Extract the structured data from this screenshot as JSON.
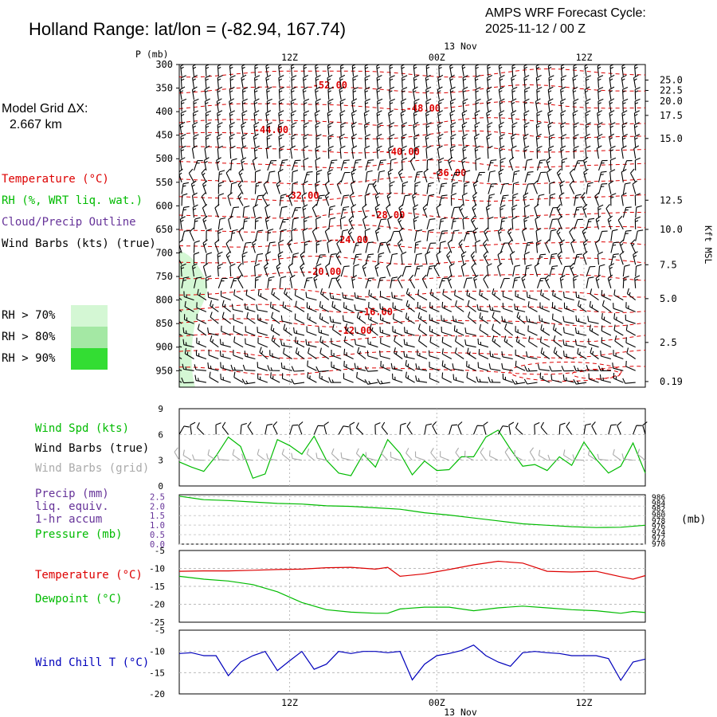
{
  "header": {
    "title": "Holland Range:  lat/lon = (-82.94, 167.74)",
    "cycle_line1": "AMPS WRF Forecast Cycle:",
    "cycle_line2": "2025-11-12 / 00  Z"
  },
  "model": {
    "label": "Model Grid ΔX:",
    "value": "2.667 km"
  },
  "legend_top": {
    "temperature": "Temperature (°C)",
    "rh": "RH (%, WRT liq. wat.)",
    "cloud": "Cloud/Precip Outline",
    "wind": "Wind Barbs (kts) (true)"
  },
  "rh_legend": [
    {
      "label": "RH > 70%",
      "color": "#d4f7d4"
    },
    {
      "label": "RH > 80%",
      "color": "#a4e8a4"
    },
    {
      "label": "RH > 90%",
      "color": "#33dd33"
    }
  ],
  "time_axis": {
    "top_date": "13 Nov",
    "bottom_date": "13 Nov",
    "ticks": [
      {
        "label": "12Z",
        "hour": 12
      },
      {
        "label": "00Z",
        "hour": 24
      },
      {
        "label": "12Z",
        "hour": 36
      }
    ],
    "start_hour": 3,
    "end_hour": 41
  },
  "panel_labels": {
    "wind_spd": "Wind Spd (kts)",
    "wind_true": "Wind Barbs (true)",
    "wind_grid": "Wind Barbs (grid)",
    "precip1": "Precip (mm)",
    "precip2": "liq. equiv.",
    "precip3": "1-hr accum",
    "pressure": "Pressure (mb)",
    "pressure_unit": "(mb)",
    "temperature": "Temperature (°C)",
    "dewpoint": "Dewpoint (°C)",
    "windchill": "Wind Chill T (°C)"
  },
  "colors": {
    "temperature": "#dd0000",
    "green": "#00bb00",
    "purple": "#663399",
    "blue": "#0000bb",
    "grid_barb": "#aaaaaa"
  },
  "chart_data": [
    {
      "type": "cross-section",
      "name": "upper",
      "yaxis_title": "P (mb)",
      "right_axis_title": "Kft MSL",
      "p_ticks": [
        "300",
        "350",
        "400",
        "450",
        "500",
        "550",
        "600",
        "650",
        "700",
        "750",
        "800",
        "850",
        "900",
        "950"
      ],
      "kft_ticks": [
        {
          "label": "25.0",
          "p": 333
        },
        {
          "label": "22.5",
          "p": 355
        },
        {
          "label": "20.0",
          "p": 378
        },
        {
          "label": "17.5",
          "p": 408
        },
        {
          "label": "15.0",
          "p": 457
        },
        {
          "label": "12.5",
          "p": 588
        },
        {
          "label": "10.0",
          "p": 650
        },
        {
          "label": "7.5",
          "p": 725
        },
        {
          "label": "5.0",
          "p": 797
        },
        {
          "label": "2.5",
          "p": 890
        },
        {
          "label": "0.19",
          "p": 973
        }
      ],
      "isotherm_labels": [
        {
          "text": "-52.00",
          "hour": 15.3,
          "p": 349
        },
        {
          "text": "-48.00",
          "hour": 22.9,
          "p": 398
        },
        {
          "text": "-44.00",
          "hour": 10.5,
          "p": 444
        },
        {
          "text": "-40.00",
          "hour": 21.2,
          "p": 490
        },
        {
          "text": "-36.00",
          "hour": 25.0,
          "p": 535
        },
        {
          "text": "-32.00",
          "hour": 13.0,
          "p": 583
        },
        {
          "text": "-28.00",
          "hour": 20.0,
          "p": 625
        },
        {
          "text": "-24.00",
          "hour": 17.0,
          "p": 677
        },
        {
          "text": "-20.00",
          "hour": 14.8,
          "p": 745
        },
        {
          "text": "-16.00",
          "hour": 19.0,
          "p": 830
        },
        {
          "text": "-12.00",
          "hour": 17.3,
          "p": 870
        }
      ]
    },
    {
      "type": "line",
      "name": "wind_speed",
      "ylim": [
        0,
        9
      ],
      "y_ticks": [
        "0",
        "3",
        "6",
        "9"
      ],
      "hours": [
        3,
        4,
        5,
        6,
        7,
        8,
        9,
        10,
        11,
        12,
        13,
        14,
        15,
        16,
        17,
        18,
        19,
        20,
        21,
        22,
        23,
        24,
        25,
        26,
        27,
        28,
        29,
        30,
        31,
        32,
        33,
        34,
        35,
        36,
        37,
        38,
        39,
        40,
        41
      ],
      "values": [
        2.8,
        2.2,
        1.7,
        3.5,
        5.7,
        4.6,
        0.9,
        1.4,
        5.4,
        4.7,
        3.7,
        5.8,
        3.0,
        1.5,
        1.2,
        3.7,
        2.2,
        5.4,
        3.8,
        1.3,
        2.9,
        1.8,
        1.9,
        3.4,
        3.4,
        5.7,
        6.5,
        4.3,
        2.3,
        2.5,
        1.8,
        3.4,
        2.4,
        5.1,
        3.1,
        1.5,
        2.3,
        5.0,
        1.5
      ]
    },
    {
      "type": "line",
      "name": "pressure",
      "precip_ticks": [
        "0.0",
        "0.5",
        "1.0",
        "1.5",
        "2.0",
        "2.5"
      ],
      "pressure_ticks": [
        "986",
        "984",
        "982",
        "980",
        "978",
        "976",
        "974",
        "972",
        "970"
      ],
      "ylim": [
        970,
        987
      ],
      "hours": [
        3,
        5,
        7,
        9,
        11,
        13,
        15,
        17,
        19,
        21,
        23,
        25,
        27,
        29,
        31,
        33,
        35,
        37,
        39,
        41
      ],
      "values": [
        986.5,
        985.3,
        985.0,
        984.5,
        984.0,
        983.8,
        983.2,
        983.0,
        982.5,
        982.0,
        980.8,
        980.0,
        979.0,
        978.0,
        977.0,
        976.5,
        976.0,
        975.7,
        975.8,
        976.5
      ]
    },
    {
      "type": "line",
      "name": "temperature_dewpoint",
      "ylim": [
        -25,
        -5
      ],
      "y_ticks": [
        "-5",
        "-10",
        "-15",
        "-20",
        "-25"
      ],
      "series": [
        {
          "name": "Temperature (°C)",
          "hours": [
            3,
            5,
            7,
            9,
            11,
            13,
            15,
            17,
            19,
            20,
            21,
            23,
            25,
            27,
            29,
            31,
            33,
            35,
            37,
            39,
            40,
            41
          ],
          "values": [
            -10.8,
            -10.7,
            -10.7,
            -10.5,
            -10.3,
            -10.2,
            -9.8,
            -9.7,
            -10.2,
            -9.7,
            -12.2,
            -11.5,
            -10.3,
            -9.0,
            -8.0,
            -8.5,
            -10.8,
            -11.0,
            -10.8,
            -12.3,
            -13.0,
            -12.0
          ]
        },
        {
          "name": "Dewpoint (°C)",
          "hours": [
            3,
            5,
            7,
            9,
            11,
            13,
            15,
            17,
            19,
            20,
            21,
            23,
            25,
            27,
            29,
            31,
            33,
            35,
            37,
            39,
            40,
            41
          ],
          "values": [
            -12.2,
            -13.0,
            -13.5,
            -14.5,
            -16.5,
            -19.5,
            -21.5,
            -22.2,
            -22.5,
            -22.5,
            -21.3,
            -20.8,
            -20.8,
            -21.8,
            -21.0,
            -20.5,
            -21.0,
            -21.5,
            -21.8,
            -22.5,
            -22.0,
            -22.3
          ]
        }
      ]
    },
    {
      "type": "line",
      "name": "wind_chill",
      "ylim": [
        -20,
        -5
      ],
      "y_ticks": [
        "-5",
        "-10",
        "-15",
        "-20"
      ],
      "hours": [
        3,
        4,
        5,
        6,
        7,
        8,
        9,
        10,
        11,
        12,
        13,
        14,
        15,
        16,
        17,
        18,
        19,
        20,
        21,
        22,
        23,
        24,
        25,
        26,
        27,
        28,
        29,
        30,
        31,
        32,
        33,
        34,
        35,
        36,
        37,
        38,
        39,
        40,
        41
      ],
      "values": [
        -10.5,
        -10.3,
        -11.0,
        -11.0,
        -15.7,
        -12.5,
        -11.0,
        -10.0,
        -14.5,
        -12.2,
        -10.0,
        -14.2,
        -13.0,
        -10.0,
        -10.5,
        -10.0,
        -10.0,
        -10.3,
        -10.0,
        -16.7,
        -13.0,
        -11.0,
        -10.5,
        -9.8,
        -8.5,
        -11.0,
        -12.5,
        -13.5,
        -10.3,
        -10.0,
        -10.3,
        -10.5,
        -11.0,
        -11.0,
        -11.0,
        -11.7,
        -16.8,
        -12.5,
        -11.8
      ]
    }
  ]
}
